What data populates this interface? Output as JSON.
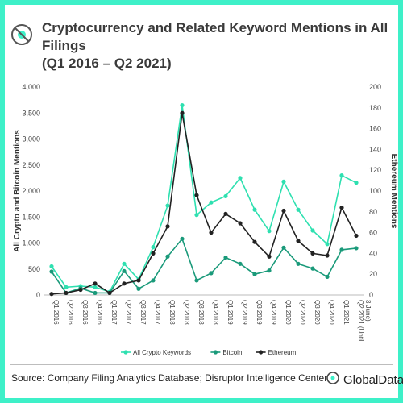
{
  "header": {
    "title_line1": "Cryptocurrency and Related Keyword Mentions in All Filings",
    "title_line2": "(Q1 2016 – Q2 2021)"
  },
  "footer": {
    "source": "Source: Company Filing Analytics Database; Disruptor Intelligence Center",
    "brand": "GlobalData."
  },
  "colors": {
    "frame": "#3ef0c8",
    "all_crypto": "#2ee0b0",
    "bitcoin": "#1a9a7a",
    "ethereum": "#222222"
  },
  "chart_data": {
    "type": "line",
    "xlabel": "",
    "ylabel": "All Crypto and Bitcoin Mentions",
    "y2label": "Ethereum Mentions",
    "ylim": [
      0,
      4000
    ],
    "y2lim": [
      0,
      200
    ],
    "yticks": [
      "0",
      "500",
      "1,000",
      "1,500",
      "2,000",
      "2,500",
      "3,000",
      "3,500",
      "4,000"
    ],
    "y2ticks": [
      "0",
      "20",
      "40",
      "60",
      "80",
      "100",
      "120",
      "140",
      "160",
      "180",
      "200"
    ],
    "legend_position": "bottom",
    "categories": [
      "Q1 2016",
      "Q2 2016",
      "Q3 2016",
      "Q4 2016",
      "Q1 2017",
      "Q2 2017",
      "Q3 2017",
      "Q4 2017",
      "Q1 2018",
      "Q2 2018",
      "Q3 2018",
      "Q4 2018",
      "Q1 2019",
      "Q2 2019",
      "Q3 2019",
      "Q4 2019",
      "Q1 2020",
      "Q2 2020",
      "Q3 2020",
      "Q4 2020",
      "Q1 2021",
      "Q2 2021 (Until 3 June)"
    ],
    "series": [
      {
        "name": "All Crypto Keywords",
        "axis": "left",
        "values": [
          550,
          150,
          170,
          150,
          60,
          600,
          300,
          920,
          1720,
          3650,
          1540,
          1780,
          1900,
          2250,
          1640,
          1230,
          2180,
          1640,
          1240,
          980,
          2300,
          2160
        ]
      },
      {
        "name": "Bitcoin",
        "axis": "left",
        "values": [
          450,
          40,
          130,
          40,
          40,
          460,
          120,
          280,
          740,
          1080,
          280,
          420,
          720,
          600,
          400,
          470,
          910,
          600,
          510,
          350,
          870,
          900
        ]
      },
      {
        "name": "Ethereum",
        "axis": "right",
        "values": [
          1,
          2,
          5,
          11,
          2,
          11,
          14,
          40,
          66,
          175,
          96,
          60,
          78,
          69,
          51,
          37,
          81,
          52,
          40,
          38,
          84,
          57
        ]
      }
    ]
  }
}
